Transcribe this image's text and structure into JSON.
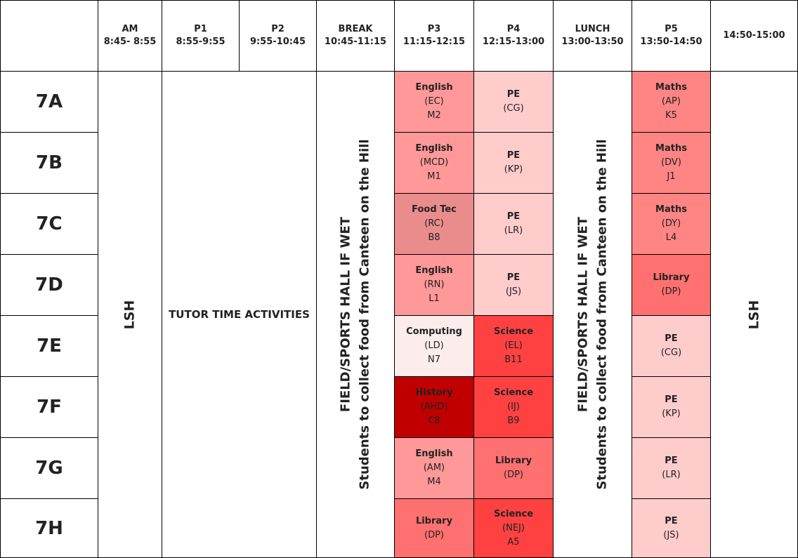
{
  "headers": {
    "am": {
      "title": "AM",
      "time": "8:45- 8:55"
    },
    "p1": {
      "title": "P1",
      "time": "8:55-9:55"
    },
    "p2": {
      "title": "P2",
      "time": "9:55-10:45"
    },
    "break": {
      "title": "BREAK",
      "time": "10:45-11:15"
    },
    "p3": {
      "title": "P3",
      "time": "11:15-12:15"
    },
    "p4": {
      "title": "P4",
      "time": "12:15-13:00"
    },
    "lunch": {
      "title": "LUNCH",
      "time": "13:00-13:50"
    },
    "p5": {
      "title": "P5",
      "time": "13:50-14:50"
    },
    "end": {
      "title": "",
      "time": "14:50-15:00"
    }
  },
  "classes": [
    "7A",
    "7B",
    "7C",
    "7D",
    "7E",
    "7F",
    "7G",
    "7H"
  ],
  "spans": {
    "am": "LSH",
    "tutor": "TUTOR TIME ACTIVITIES",
    "break": {
      "line1": "FIELD/SPORTS HALL IF WET",
      "line2": "Students to collect food from Canteen on the Hill"
    },
    "lunch": {
      "line1": "FIELD/SPORTS HALL IF WET",
      "line2": "Students to collect food from Canteen on the Hill"
    },
    "end": "LSH"
  },
  "p3": [
    {
      "subject": "English",
      "teacher": "(EC)",
      "room": "M2",
      "color": "#ff9898"
    },
    {
      "subject": "English",
      "teacher": "(MCD)",
      "room": "M1",
      "color": "#ff9898"
    },
    {
      "subject": "Food Tec",
      "teacher": "(RC)",
      "room": "B8",
      "color": "#eb8c8c"
    },
    {
      "subject": "English",
      "teacher": "(RN)",
      "room": "L1",
      "color": "#ff9898"
    },
    {
      "subject": "Computing",
      "teacher": "(LD)",
      "room": "N7",
      "color": "#fdecec"
    },
    {
      "subject": "History",
      "teacher": "(AHD)",
      "room": "C8",
      "color": "#c00000"
    },
    {
      "subject": "English",
      "teacher": "(AM)",
      "room": "M4",
      "color": "#ff9898"
    },
    {
      "subject": "Library",
      "teacher": "(DP)",
      "room": "",
      "color": "#ff7070"
    }
  ],
  "p4": [
    {
      "subject": "PE",
      "teacher": "(CG)",
      "room": "",
      "color": "#ffcccc"
    },
    {
      "subject": "PE",
      "teacher": "(KP)",
      "room": "",
      "color": "#ffcccc"
    },
    {
      "subject": "PE",
      "teacher": "(LR)",
      "room": "",
      "color": "#ffcccc"
    },
    {
      "subject": "PE",
      "teacher": "(JS)",
      "room": "",
      "color": "#ffcccc"
    },
    {
      "subject": "Science",
      "teacher": "(EL)",
      "room": "B11",
      "color": "#ff4141"
    },
    {
      "subject": "Science",
      "teacher": "(IJ)",
      "room": "B9",
      "color": "#ff4141"
    },
    {
      "subject": "Library",
      "teacher": "(DP)",
      "room": "",
      "color": "#ff7070"
    },
    {
      "subject": "Science",
      "teacher": "(NEJ)",
      "room": "A5",
      "color": "#ff4141"
    }
  ],
  "p5": [
    {
      "subject": "Maths",
      "teacher": "(AP)",
      "room": "K5",
      "color": "#ff8484"
    },
    {
      "subject": "Maths",
      "teacher": "(DV)",
      "room": "J1",
      "color": "#ff8484"
    },
    {
      "subject": "Maths",
      "teacher": "(DY)",
      "room": "L4",
      "color": "#ff8484"
    },
    {
      "subject": "Library",
      "teacher": "(DP)",
      "room": "",
      "color": "#ff7070"
    },
    {
      "subject": "PE",
      "teacher": "(CG)",
      "room": "",
      "color": "#ffcccc"
    },
    {
      "subject": "PE",
      "teacher": "(KP)",
      "room": "",
      "color": "#ffcccc"
    },
    {
      "subject": "PE",
      "teacher": "(LR)",
      "room": "",
      "color": "#ffcccc"
    },
    {
      "subject": "PE",
      "teacher": "(JS)",
      "room": "",
      "color": "#ffcccc"
    }
  ]
}
